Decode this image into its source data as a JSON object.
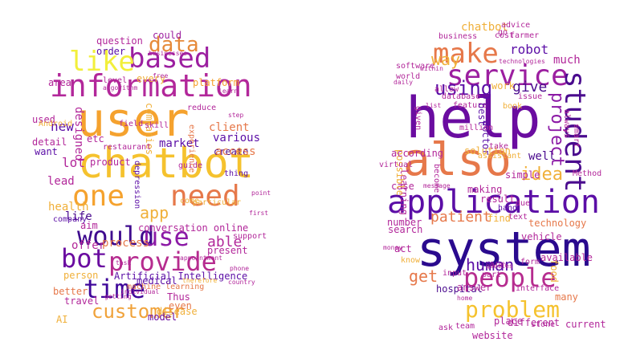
{
  "left_cloud": {
    "words": [
      {
        "text": "user",
        "color": "#f5a22e"
      },
      {
        "text": "chatbot",
        "color": "#f5c22e"
      },
      {
        "text": "information",
        "color": "#b2279a"
      },
      {
        "text": "based",
        "color": "#9c1fa0"
      },
      {
        "text": "like",
        "color": "#f2ef3b"
      },
      {
        "text": "data",
        "color": "#e68a3a"
      },
      {
        "text": "one",
        "color": "#f5a22e"
      },
      {
        "text": "need",
        "color": "#e6784a"
      },
      {
        "text": "app",
        "color": "#f0b03a"
      },
      {
        "text": "would",
        "color": "#3e0a8e"
      },
      {
        "text": "use",
        "color": "#8c1aa6"
      },
      {
        "text": "bot",
        "color": "#6a0ca0"
      },
      {
        "text": "provide",
        "color": "#b62c8f"
      },
      {
        "text": "time",
        "color": "#3f089a"
      },
      {
        "text": "customer",
        "color": "#f0a23a"
      },
      {
        "text": "able",
        "color": "#b2279a"
      },
      {
        "text": "new",
        "color": "#5b0ea6"
      },
      {
        "text": "question",
        "color": "#b2279a"
      },
      {
        "text": "could",
        "color": "#9c1fa0"
      },
      {
        "text": "platform",
        "color": "#f5a22e"
      },
      {
        "text": "conversation online",
        "color": "#b2279a"
      },
      {
        "text": "Artificial Intelligence",
        "color": "#5b0ea6"
      },
      {
        "text": "machine learning",
        "color": "#e6784a"
      },
      {
        "text": "lot",
        "color": "#b2279a"
      },
      {
        "text": "lead",
        "color": "#b2279a"
      },
      {
        "text": "health",
        "color": "#f0b03a"
      },
      {
        "text": "life",
        "color": "#4a0b8e"
      },
      {
        "text": "offer",
        "color": "#b2279a"
      },
      {
        "text": "process",
        "color": "#e6784a"
      },
      {
        "text": "person",
        "color": "#f0b03a"
      },
      {
        "text": "better",
        "color": "#e6784a"
      },
      {
        "text": "travel",
        "color": "#b2279a"
      },
      {
        "text": "medical",
        "color": "#5b0ea6"
      },
      {
        "text": "Thus",
        "color": "#b2279a"
      },
      {
        "text": "even",
        "color": "#e6784a"
      },
      {
        "text": "disease",
        "color": "#f0b03a"
      },
      {
        "text": "model",
        "color": "#6a0ca0"
      },
      {
        "text": "present",
        "color": "#b2279a"
      },
      {
        "text": "client",
        "color": "#e6784a"
      },
      {
        "text": "various",
        "color": "#5b0ea6"
      },
      {
        "text": "create",
        "color": "#4a0b8e"
      },
      {
        "text": "access",
        "color": "#e6784a"
      },
      {
        "text": "market",
        "color": "#5b0ea6"
      },
      {
        "text": "product",
        "color": "#b2279a"
      },
      {
        "text": "etc",
        "color": "#b2279a"
      },
      {
        "text": "aim",
        "color": "#b2279a"
      },
      {
        "text": "designed",
        "color": "#b2279a"
      },
      {
        "text": "companies",
        "color": "#f0b03a"
      },
      {
        "text": "detail",
        "color": "#b2279a"
      },
      {
        "text": "want",
        "color": "#5b0ea6"
      },
      {
        "text": "used",
        "color": "#b2279a"
      },
      {
        "text": "area",
        "color": "#b2279a"
      },
      {
        "text": "every",
        "color": "#f0b03a"
      },
      {
        "text": "order",
        "color": "#5b0ea6"
      },
      {
        "text": "AI",
        "color": "#f0b03a"
      },
      {
        "text": "Android",
        "color": "#f0b03a"
      },
      {
        "text": "restaurant",
        "color": "#b2279a"
      },
      {
        "text": "field",
        "color": "#b2279a"
      },
      {
        "text": "skill",
        "color": "#b2279a"
      },
      {
        "text": "guide",
        "color": "#b2279a"
      },
      {
        "text": "thing",
        "color": "#5b0ea6"
      },
      {
        "text": "support",
        "color": "#b2279a"
      },
      {
        "text": "phone",
        "color": "#b2279a"
      },
      {
        "text": "country",
        "color": "#b2279a"
      },
      {
        "text": "first",
        "color": "#b2279a"
      },
      {
        "text": "point",
        "color": "#b2279a"
      },
      {
        "text": "reduce",
        "color": "#b2279a"
      },
      {
        "text": "experience",
        "color": "#e6784a"
      },
      {
        "text": "therefore",
        "color": "#f0b03a"
      },
      {
        "text": "level",
        "color": "#b2279a"
      },
      {
        "text": "algorithm",
        "color": "#b2279a"
      },
      {
        "text": "businesses",
        "color": "#b2279a"
      },
      {
        "text": "free",
        "color": "#b2279a"
      },
      {
        "text": "learn",
        "color": "#b2279a"
      },
      {
        "text": "company",
        "color": "#5b0ea6"
      },
      {
        "text": "depression",
        "color": "#5b0ea6"
      },
      {
        "text": "step",
        "color": "#b2279a"
      },
      {
        "text": "particular",
        "color": "#f0b03a"
      },
      {
        "text": "come",
        "color": "#f0b03a"
      },
      {
        "text": "task",
        "color": "#b2279a"
      },
      {
        "text": "appointment",
        "color": "#b2279a"
      },
      {
        "text": "individual",
        "color": "#b2279a"
      },
      {
        "text": "getting",
        "color": "#b2279a"
      }
    ]
  },
  "right_cloud": {
    "words": [
      {
        "text": "help",
        "color": "#6a0ca0"
      },
      {
        "text": "system",
        "color": "#2a0a8e"
      },
      {
        "text": "also",
        "color": "#e6784a"
      },
      {
        "text": "application",
        "color": "#5b0ea6"
      },
      {
        "text": "service",
        "color": "#9c1fa0"
      },
      {
        "text": "make",
        "color": "#e6784a"
      },
      {
        "text": "student",
        "color": "#4a0b8e"
      },
      {
        "text": "project",
        "color": "#8c1aa6"
      },
      {
        "text": "people",
        "color": "#b62c8f"
      },
      {
        "text": "problem",
        "color": "#f5c22e"
      },
      {
        "text": "using",
        "color": "#5b0ea6"
      },
      {
        "text": "way",
        "color": "#f0b03a"
      },
      {
        "text": "robot",
        "color": "#5b0ea6"
      },
      {
        "text": "much",
        "color": "#b2279a"
      },
      {
        "text": "give",
        "color": "#4a0b8e"
      },
      {
        "text": "idea",
        "color": "#f0b03a"
      },
      {
        "text": "patient",
        "color": "#e6784a"
      },
      {
        "text": "human",
        "color": "#5b0ea6"
      },
      {
        "text": "get",
        "color": "#e6784a"
      },
      {
        "text": "chatbot",
        "color": "#f0b03a"
      },
      {
        "text": "business",
        "color": "#b2279a"
      },
      {
        "text": "software",
        "color": "#b2279a"
      },
      {
        "text": "world",
        "color": "#b2279a"
      },
      {
        "text": "allow",
        "color": "#b2279a"
      },
      {
        "text": "database",
        "color": "#b2279a"
      },
      {
        "text": "work",
        "color": "#f0b03a"
      },
      {
        "text": "feature",
        "color": "#b2279a"
      },
      {
        "text": "best",
        "color": "#5b0ea6"
      },
      {
        "text": "doctor",
        "color": "#5b0ea6"
      },
      {
        "text": "solution",
        "color": "#f0b03a"
      },
      {
        "text": "well",
        "color": "#4a0b8e"
      },
      {
        "text": "take",
        "color": "#b2279a"
      },
      {
        "text": "simple",
        "color": "#b2279a"
      },
      {
        "text": "making",
        "color": "#b2279a"
      },
      {
        "text": "result",
        "color": "#b2279a"
      },
      {
        "text": "find",
        "color": "#f0b03a"
      },
      {
        "text": "text",
        "color": "#b2279a"
      },
      {
        "text": "technology",
        "color": "#e6784a"
      },
      {
        "text": "vehicle",
        "color": "#b2279a"
      },
      {
        "text": "available",
        "color": "#b2279a"
      },
      {
        "text": "number",
        "color": "#b2279a"
      },
      {
        "text": "search",
        "color": "#b2279a"
      },
      {
        "text": "input",
        "color": "#b2279a"
      },
      {
        "text": "hospital",
        "color": "#4a0b8e"
      },
      {
        "text": "answer",
        "color": "#b2279a"
      },
      {
        "text": "website",
        "color": "#b2279a"
      },
      {
        "text": "place",
        "color": "#b2279a"
      },
      {
        "text": "different",
        "color": "#b2279a"
      },
      {
        "text": "current",
        "color": "#b2279a"
      },
      {
        "text": "interface",
        "color": "#b2279a"
      },
      {
        "text": "many",
        "color": "#e6784a"
      },
      {
        "text": "food",
        "color": "#f0b03a"
      },
      {
        "text": "Method",
        "color": "#b2279a"
      },
      {
        "text": "smart",
        "color": "#b2279a"
      },
      {
        "text": "always",
        "color": "#b2279a"
      },
      {
        "text": "cost",
        "color": "#b2279a"
      },
      {
        "text": "farmer",
        "color": "#b2279a"
      },
      {
        "text": "advice",
        "color": "#b2279a"
      },
      {
        "text": "technologies",
        "color": "#b2279a"
      },
      {
        "text": "million",
        "color": "#b2279a"
      },
      {
        "text": "book",
        "color": "#f0b03a"
      },
      {
        "text": "issue",
        "color": "#b2279a"
      },
      {
        "text": "case",
        "color": "#b2279a"
      },
      {
        "text": "learning",
        "color": "#b2279a"
      },
      {
        "text": "possible",
        "color": "#f0b03a"
      },
      {
        "text": "according",
        "color": "#b2279a"
      },
      {
        "text": "become",
        "color": "#b2279a"
      },
      {
        "text": "virtual",
        "color": "#b2279a"
      },
      {
        "text": "form",
        "color": "#b2279a"
      },
      {
        "text": "act",
        "color": "#b2279a"
      },
      {
        "text": "know",
        "color": "#f0b03a"
      },
      {
        "text": "hand",
        "color": "#5b0ea6"
      },
      {
        "text": "home",
        "color": "#b2279a"
      },
      {
        "text": "high",
        "color": "#b2279a"
      },
      {
        "text": "ask",
        "color": "#b2279a"
      },
      {
        "text": "due",
        "color": "#b2279a"
      },
      {
        "text": "part",
        "color": "#b2279a"
      },
      {
        "text": "stone",
        "color": "#b2279a"
      },
      {
        "text": "message",
        "color": "#b2279a"
      },
      {
        "text": "list",
        "color": "#b2279a"
      },
      {
        "text": "given",
        "color": "#b2279a"
      },
      {
        "text": "daily",
        "color": "#b2279a"
      },
      {
        "text": "team",
        "color": "#b2279a"
      },
      {
        "text": "money",
        "color": "#b2279a"
      },
      {
        "text": "go",
        "color": "#b2279a"
      },
      {
        "text": "assistant",
        "color": "#f0b03a"
      },
      {
        "text": "queries",
        "color": "#b2279a"
      },
      {
        "text": "within",
        "color": "#b2279a"
      }
    ]
  }
}
